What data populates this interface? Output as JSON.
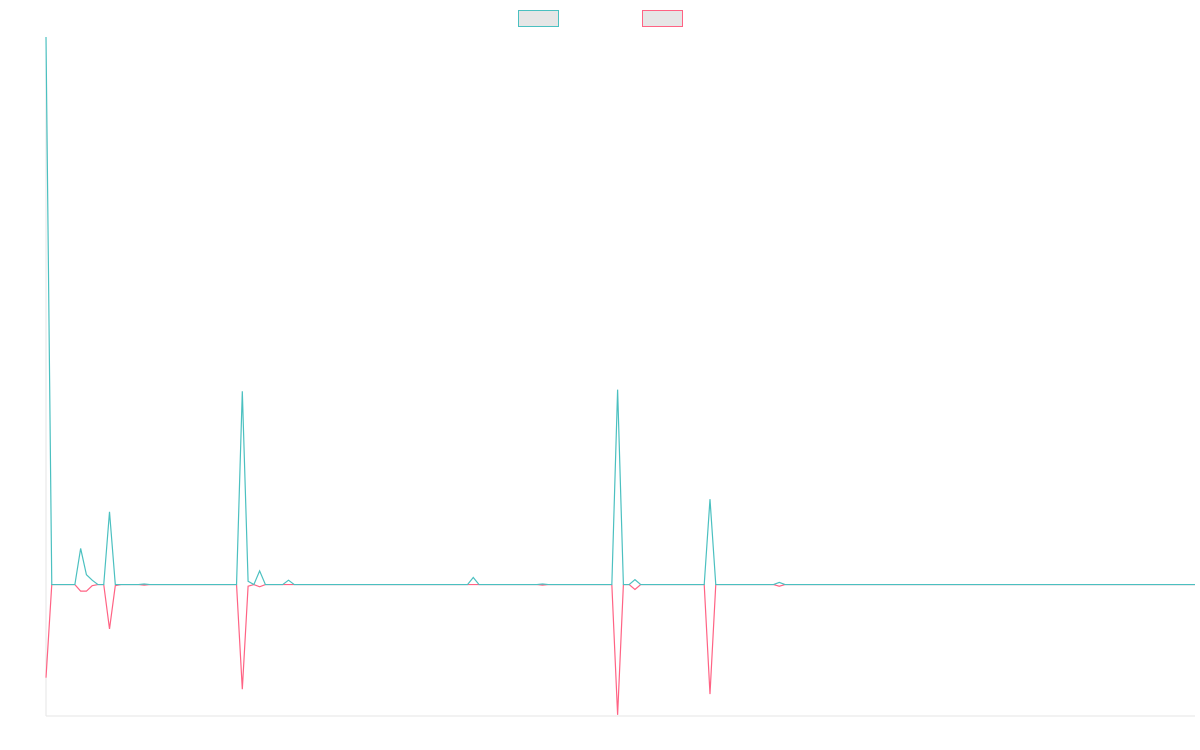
{
  "chart_data": {
    "type": "line",
    "title": "",
    "xlabel": "",
    "ylabel": "",
    "grid": false,
    "legend_position": "top-center",
    "ylim": [
      -0.24,
      1.0
    ],
    "x_count": 200,
    "series": [
      {
        "name": "",
        "color": "#4bc0c0",
        "fill": "rgba(230,230,230,1)",
        "points": [
          [
            0,
            1.0
          ],
          [
            1,
            0.0
          ],
          [
            5,
            0.0
          ],
          [
            6,
            0.066
          ],
          [
            7,
            0.018
          ],
          [
            8,
            0.008
          ],
          [
            9,
            0.0
          ],
          [
            10,
            0.0
          ],
          [
            11,
            0.133
          ],
          [
            12,
            0.0
          ],
          [
            13,
            0.0
          ],
          [
            16,
            0.0
          ],
          [
            17,
            0.001
          ],
          [
            18,
            0.0
          ],
          [
            33,
            0.0
          ],
          [
            34,
            0.353
          ],
          [
            35,
            0.006
          ],
          [
            36,
            0.0
          ],
          [
            37,
            0.025
          ],
          [
            38,
            0.0
          ],
          [
            41,
            0.0
          ],
          [
            42,
            0.008
          ],
          [
            43,
            0.0
          ],
          [
            73,
            0.0
          ],
          [
            74,
            0.013
          ],
          [
            75,
            0.0
          ],
          [
            85,
            0.0
          ],
          [
            86,
            0.001
          ],
          [
            87,
            0.0
          ],
          [
            98,
            0.0
          ],
          [
            99,
            0.356
          ],
          [
            100,
            0.0
          ],
          [
            101,
            0.0
          ],
          [
            102,
            0.009
          ],
          [
            103,
            0.0
          ],
          [
            114,
            0.0
          ],
          [
            115,
            0.156
          ],
          [
            116,
            0.0
          ],
          [
            126,
            0.0
          ],
          [
            127,
            0.004
          ],
          [
            128,
            0.0
          ],
          [
            199,
            0.0
          ]
        ]
      },
      {
        "name": "",
        "color": "#ff6384",
        "fill": "rgba(230,230,230,1)",
        "points": [
          [
            0,
            -0.17
          ],
          [
            1,
            0.0
          ],
          [
            5,
            0.0
          ],
          [
            6,
            -0.012
          ],
          [
            7,
            -0.012
          ],
          [
            8,
            -0.002
          ],
          [
            9,
            0.0
          ],
          [
            10,
            0.0
          ],
          [
            11,
            -0.081
          ],
          [
            12,
            -0.002
          ],
          [
            13,
            0.0
          ],
          [
            16,
            0.0
          ],
          [
            17,
            -0.001
          ],
          [
            18,
            0.0
          ],
          [
            33,
            0.0
          ],
          [
            34,
            -0.191
          ],
          [
            35,
            -0.003
          ],
          [
            36,
            0.0
          ],
          [
            37,
            -0.004
          ],
          [
            38,
            0.0
          ],
          [
            85,
            0.0
          ],
          [
            86,
            -0.001
          ],
          [
            87,
            0.0
          ],
          [
            98,
            0.0
          ],
          [
            99,
            -0.238
          ],
          [
            100,
            0.0
          ],
          [
            101,
            0.0
          ],
          [
            102,
            -0.009
          ],
          [
            103,
            0.0
          ],
          [
            114,
            0.0
          ],
          [
            115,
            -0.2
          ],
          [
            116,
            0.0
          ],
          [
            126,
            0.0
          ],
          [
            127,
            -0.003
          ],
          [
            128,
            0.0
          ],
          [
            199,
            0.0
          ]
        ]
      }
    ]
  }
}
